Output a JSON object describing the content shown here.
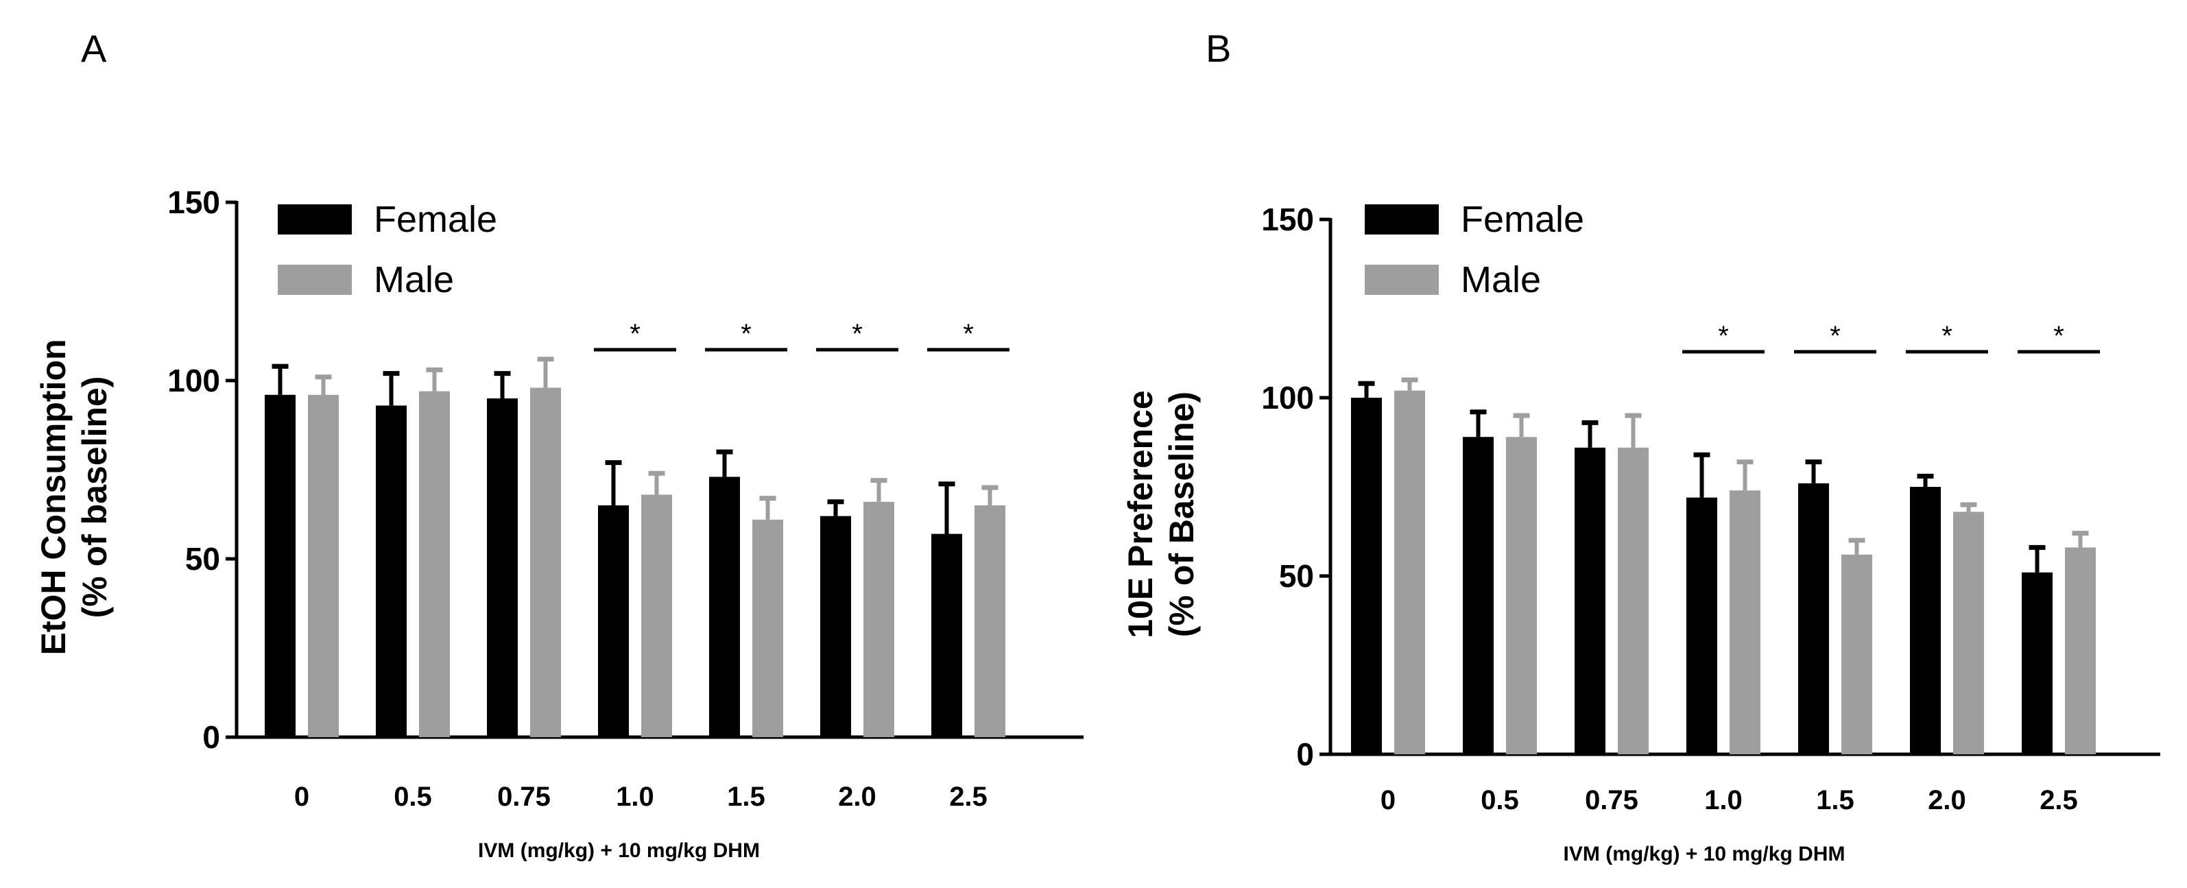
{
  "chart_data": [
    {
      "panel": "A",
      "type": "bar",
      "categories": [
        "0",
        "0.5",
        "0.75",
        "1.0",
        "1.5",
        "2.0",
        "2.5"
      ],
      "ylabel": [
        "EtOH Consumption",
        "(% of baseline)"
      ],
      "xlabel": "IVM (mg/kg) + 10 mg/kg DHM",
      "ylim": [
        0,
        150
      ],
      "yticks": [
        "0",
        "50",
        "100",
        "150"
      ],
      "legend": "top-left",
      "series": [
        {
          "name": "Female",
          "color": "#000000",
          "values": [
            96,
            93,
            95,
            65,
            73,
            62,
            57
          ],
          "errors": [
            8,
            9,
            7,
            12,
            7,
            4,
            14
          ]
        },
        {
          "name": "Male",
          "color": "#9e9e9e",
          "values": [
            96,
            97,
            98,
            68,
            61,
            66,
            65
          ],
          "errors": [
            5,
            6,
            8,
            6,
            6,
            6,
            5
          ]
        }
      ],
      "significance": [
        "",
        "",
        "",
        "*",
        "*",
        "*",
        "*"
      ]
    },
    {
      "panel": "B",
      "type": "bar",
      "categories": [
        "0",
        "0.5",
        "0.75",
        "1.0",
        "1.5",
        "2.0",
        "2.5"
      ],
      "ylabel": [
        "10E Preference",
        "(% of Baseline)"
      ],
      "xlabel": "IVM (mg/kg) + 10 mg/kg DHM",
      "ylim": [
        0,
        150
      ],
      "yticks": [
        "0",
        "50",
        "100",
        "150"
      ],
      "legend": "top-left",
      "series": [
        {
          "name": "Female",
          "color": "#000000",
          "values": [
            100,
            89,
            86,
            72,
            76,
            75,
            51
          ],
          "errors": [
            4,
            7,
            7,
            12,
            6,
            3,
            7
          ]
        },
        {
          "name": "Male",
          "color": "#9e9e9e",
          "values": [
            102,
            89,
            86,
            74,
            56,
            68,
            58
          ],
          "errors": [
            3,
            6,
            9,
            8,
            4,
            2,
            4
          ]
        }
      ],
      "significance": [
        "",
        "",
        "",
        "*",
        "*",
        "*",
        "*"
      ]
    }
  ]
}
